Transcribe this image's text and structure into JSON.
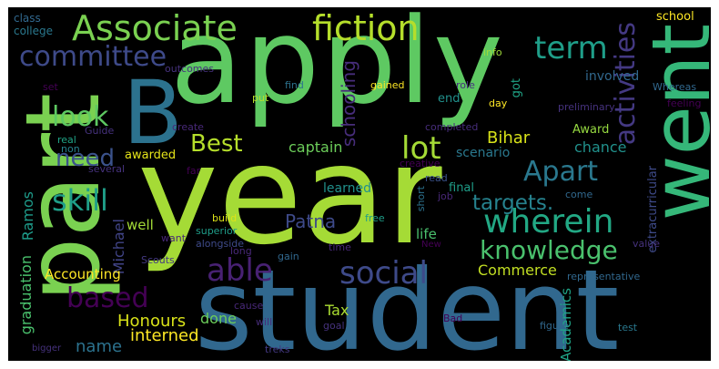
{
  "word_cloud": {
    "background_color": "#000000",
    "words": [
      {
        "text": "apply",
        "color": "#5ec962"
      },
      {
        "text": "year",
        "color": "#a5db36"
      },
      {
        "text": "student",
        "color": "#31688e"
      },
      {
        "text": "part",
        "color": "#7ad151"
      },
      {
        "text": "B",
        "color": "#2c728e"
      },
      {
        "text": "went",
        "color": "#35b779"
      },
      {
        "text": "Associate",
        "color": "#7ad151"
      },
      {
        "text": "fiction",
        "color": "#b5de2b"
      },
      {
        "text": "term",
        "color": "#1f9e89"
      },
      {
        "text": "committee",
        "color": "#3e4a89"
      },
      {
        "text": "look",
        "color": "#5ec962"
      },
      {
        "text": "Best",
        "color": "#b5de2b"
      },
      {
        "text": "lot",
        "color": "#a5db36"
      },
      {
        "text": "wherein",
        "color": "#22a884"
      },
      {
        "text": "activities",
        "color": "#443983"
      },
      {
        "text": "Apart",
        "color": "#2a788e"
      },
      {
        "text": "need",
        "color": "#3b528b"
      },
      {
        "text": "skill",
        "color": "#1f9e89"
      },
      {
        "text": "targets.",
        "color": "#26828e"
      },
      {
        "text": "knowledge",
        "color": "#4ac16d"
      },
      {
        "text": "able",
        "color": "#482173"
      },
      {
        "text": "social",
        "color": "#3e4a89"
      },
      {
        "text": "based",
        "color": "#440154"
      },
      {
        "text": "Commerce",
        "color": "#c2df23"
      },
      {
        "text": "Patna",
        "color": "#3e4a89"
      },
      {
        "text": "Bihar",
        "color": "#d8e219"
      },
      {
        "text": "schooling",
        "color": "#472d7b"
      },
      {
        "text": "captain",
        "color": "#6ccd5a"
      },
      {
        "text": "chance",
        "color": "#21918c"
      },
      {
        "text": "Honours",
        "color": "#d8e219"
      },
      {
        "text": "name",
        "color": "#2c728e"
      },
      {
        "text": "interned",
        "color": "#fde725"
      },
      {
        "text": "done",
        "color": "#6ccd5a"
      },
      {
        "text": "Tax",
        "color": "#aadc32"
      },
      {
        "text": "Michael",
        "color": "#414487"
      },
      {
        "text": "Ramos",
        "color": "#1e9b8a"
      },
      {
        "text": "graduation",
        "color": "#4ac16d"
      },
      {
        "text": "Accounting",
        "color": "#fde725"
      },
      {
        "text": "Academics",
        "color": "#20a486"
      },
      {
        "text": "extracurricular",
        "color": "#3e4a89"
      },
      {
        "text": "class",
        "color": "#31688e"
      },
      {
        "text": "college",
        "color": "#2a788e"
      },
      {
        "text": "school",
        "color": "#fde725"
      },
      {
        "text": "Whereas",
        "color": "#31688e"
      },
      {
        "text": "feeling",
        "color": "#440154"
      },
      {
        "text": "involved",
        "color": "#31688e"
      },
      {
        "text": "preliminary",
        "color": "#46327e"
      },
      {
        "text": "info",
        "color": "#9fda3a"
      },
      {
        "text": "outcomes",
        "color": "#46327e"
      },
      {
        "text": "set",
        "color": "#440154"
      },
      {
        "text": "put",
        "color": "#b5de2b"
      },
      {
        "text": "find",
        "color": "#2c728e"
      },
      {
        "text": "gained",
        "color": "#fde725"
      },
      {
        "text": "role",
        "color": "#46327e"
      },
      {
        "text": "got",
        "color": "#20a486"
      },
      {
        "text": "day",
        "color": "#fde725"
      },
      {
        "text": "end",
        "color": "#21918c"
      },
      {
        "text": "completed",
        "color": "#472d7b"
      },
      {
        "text": "Award",
        "color": "#95d840"
      },
      {
        "text": "Guide",
        "color": "#46327e"
      },
      {
        "text": "real",
        "color": "#20a486"
      },
      {
        "text": "non",
        "color": "#26828e"
      },
      {
        "text": "create",
        "color": "#482878"
      },
      {
        "text": "creative",
        "color": "#440154"
      },
      {
        "text": "scenario",
        "color": "#2a788e"
      },
      {
        "text": "awarded",
        "color": "#e5e419"
      },
      {
        "text": "several",
        "color": "#46327e"
      },
      {
        "text": "far",
        "color": "#440154"
      },
      {
        "text": "learned",
        "color": "#21918c"
      },
      {
        "text": "read",
        "color": "#3b528b"
      },
      {
        "text": "short",
        "color": "#2c728e"
      },
      {
        "text": "job",
        "color": "#482878"
      },
      {
        "text": "final",
        "color": "#1f9e89"
      },
      {
        "text": "come",
        "color": "#31688e"
      },
      {
        "text": "well",
        "color": "#a2da37"
      },
      {
        "text": "build",
        "color": "#dde318"
      },
      {
        "text": "free",
        "color": "#1f9e89"
      },
      {
        "text": "superior",
        "color": "#1f9e89"
      },
      {
        "text": "want",
        "color": "#482878"
      },
      {
        "text": "alongside",
        "color": "#3e4a89"
      },
      {
        "text": "life",
        "color": "#4ac16d"
      },
      {
        "text": "New",
        "color": "#440154"
      },
      {
        "text": "Scouts",
        "color": "#443983"
      },
      {
        "text": "long",
        "color": "#482878"
      },
      {
        "text": "time",
        "color": "#482878"
      },
      {
        "text": "gain",
        "color": "#31688e"
      },
      {
        "text": "value",
        "color": "#46327e"
      },
      {
        "text": "representative",
        "color": "#31688e"
      },
      {
        "text": "cause",
        "color": "#482878"
      },
      {
        "text": "will",
        "color": "#472d7b"
      },
      {
        "text": "goal",
        "color": "#46327e"
      },
      {
        "text": "figure",
        "color": "#31688e"
      },
      {
        "text": "test",
        "color": "#2a788e"
      },
      {
        "text": "Bad",
        "color": "#440154"
      },
      {
        "text": "bigger",
        "color": "#46327e"
      },
      {
        "text": "treks",
        "color": "#443983"
      }
    ]
  }
}
